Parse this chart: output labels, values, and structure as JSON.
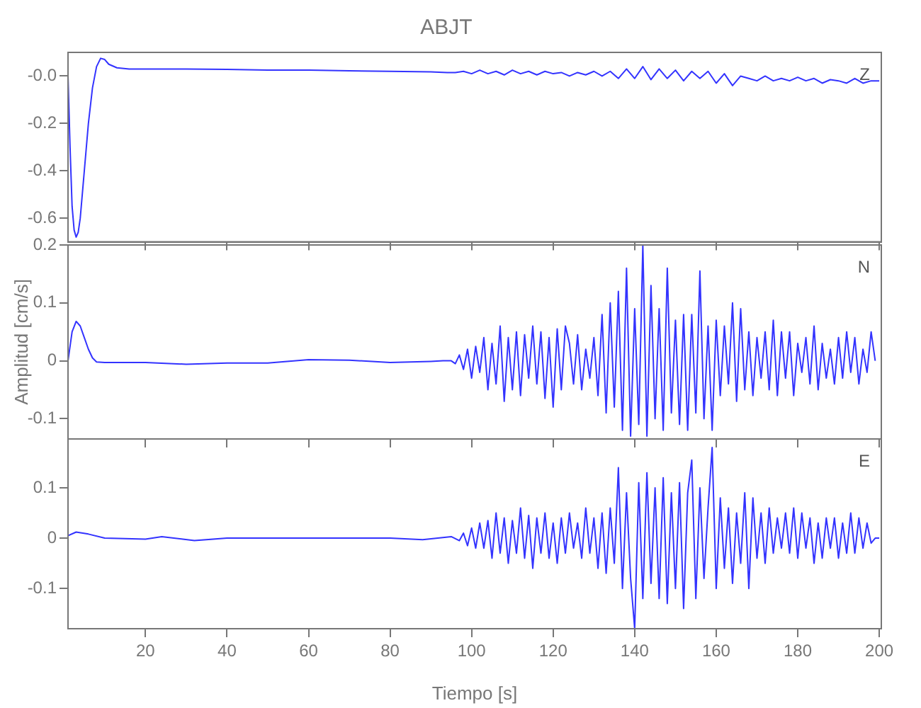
{
  "chart_data": [
    {
      "type": "line",
      "title": "ABJT",
      "annotations": [
        "Z"
      ],
      "xlim": [
        1,
        200.5
      ],
      "xticks": [
        20,
        40,
        60,
        80,
        100,
        120,
        140,
        160,
        180,
        200
      ],
      "ylim": [
        -0.7,
        0.1
      ],
      "yticks": [
        -0.6,
        -0.4,
        -0.2,
        {
          "value": 0,
          "label": "-0.0"
        }
      ],
      "tick_labels": "y",
      "grid": false,
      "legend": false,
      "series": [
        {
          "color": "#3333ff",
          "x": [
            1,
            1.5,
            2,
            2.5,
            3,
            3.5,
            4,
            5,
            6,
            7,
            8,
            9,
            10,
            11,
            13,
            16,
            20,
            30,
            40,
            50,
            60,
            70,
            80,
            90,
            94,
            96,
            98,
            100,
            102,
            104,
            106,
            108,
            110,
            112,
            114,
            116,
            118,
            120,
            122,
            124,
            126,
            128,
            130,
            132,
            134,
            136,
            138,
            140,
            142,
            144,
            146,
            148,
            150,
            152,
            154,
            156,
            158,
            160,
            162,
            164,
            166,
            168,
            170,
            172,
            174,
            176,
            178,
            180,
            182,
            184,
            186,
            188,
            190,
            192,
            194,
            196,
            198,
            200
          ],
          "values": [
            0,
            -0.3,
            -0.55,
            -0.65,
            -0.68,
            -0.66,
            -0.6,
            -0.4,
            -0.2,
            -0.05,
            0.04,
            0.075,
            0.07,
            0.05,
            0.035,
            0.03,
            0.03,
            0.03,
            0.028,
            0.025,
            0.025,
            0.022,
            0.02,
            0.018,
            0.015,
            0.015,
            0.02,
            0.01,
            0.025,
            0.01,
            0.02,
            0.005,
            0.025,
            0.01,
            0.02,
            0.005,
            0.02,
            0.01,
            0.015,
            0,
            0.015,
            0.005,
            0.02,
            0,
            0.02,
            -0.01,
            0.03,
            -0.01,
            0.04,
            -0.015,
            0.03,
            -0.01,
            0.025,
            -0.02,
            0.02,
            -0.01,
            0.02,
            -0.03,
            0.01,
            -0.04,
            0,
            -0.01,
            -0.02,
            0,
            -0.02,
            -0.01,
            -0.02,
            -0.005,
            -0.02,
            -0.01,
            -0.03,
            -0.015,
            -0.02,
            -0.03,
            -0.01,
            -0.03,
            -0.02,
            -0.02
          ]
        }
      ]
    },
    {
      "type": "line",
      "ylabel": "Amplitud [cm/s]",
      "annotations": [
        "N"
      ],
      "xlim": [
        1,
        200.5
      ],
      "xticks": [
        20,
        40,
        60,
        80,
        100,
        120,
        140,
        160,
        180,
        200
      ],
      "ylim": [
        -0.135,
        0.2
      ],
      "yticks": [
        -0.1,
        0,
        0.1,
        0.2
      ],
      "tick_labels": "y",
      "grid": false,
      "legend": false,
      "series": [
        {
          "color": "#3333ff",
          "x": [
            1,
            2,
            3,
            4,
            5,
            6,
            7,
            8,
            10,
            20,
            30,
            40,
            50,
            60,
            70,
            80,
            90,
            93,
            95,
            96,
            97,
            98,
            99,
            100,
            101,
            102,
            103,
            104,
            105,
            106,
            107,
            108,
            109,
            110,
            111,
            112,
            113,
            114,
            115,
            116,
            117,
            118,
            119,
            120,
            121,
            122,
            123,
            124,
            125,
            126,
            127,
            128,
            129,
            130,
            131,
            132,
            133,
            134,
            135,
            136,
            137,
            138,
            139,
            140,
            141,
            142,
            143,
            144,
            145,
            146,
            147,
            148,
            149,
            150,
            151,
            152,
            153,
            154,
            155,
            156,
            157,
            158,
            159,
            160,
            161,
            162,
            163,
            164,
            165,
            166,
            167,
            168,
            169,
            170,
            171,
            172,
            173,
            174,
            175,
            176,
            177,
            178,
            179,
            180,
            181,
            182,
            183,
            184,
            185,
            186,
            187,
            188,
            189,
            190,
            191,
            192,
            193,
            194,
            195,
            196,
            197,
            198,
            199
          ],
          "values": [
            0,
            0.05,
            0.068,
            0.06,
            0.04,
            0.02,
            0.005,
            -0.002,
            -0.003,
            -0.003,
            -0.006,
            -0.004,
            -0.004,
            0.002,
            0.001,
            -0.003,
            -0.001,
            0,
            0,
            -0.005,
            0.01,
            -0.015,
            0.02,
            -0.03,
            0.025,
            -0.02,
            0.04,
            -0.05,
            0.03,
            -0.04,
            0.06,
            -0.07,
            0.04,
            -0.05,
            0.05,
            -0.06,
            0.045,
            -0.03,
            0.06,
            -0.04,
            0.05,
            -0.065,
            0.04,
            -0.08,
            0.055,
            -0.05,
            0.06,
            0.03,
            -0.04,
            0.045,
            -0.05,
            0.02,
            -0.03,
            0.04,
            -0.06,
            0.08,
            -0.09,
            0.1,
            -0.08,
            0.12,
            -0.12,
            0.16,
            -0.13,
            0.09,
            -0.11,
            0.2,
            -0.13,
            0.13,
            -0.1,
            0.09,
            -0.12,
            0.16,
            -0.09,
            0.07,
            -0.11,
            0.08,
            -0.12,
            0.08,
            -0.09,
            0.155,
            -0.1,
            0.06,
            -0.12,
            0.07,
            -0.06,
            0.06,
            -0.04,
            0.1,
            -0.07,
            0.09,
            -0.05,
            0.05,
            -0.06,
            0.04,
            -0.03,
            0.05,
            -0.05,
            0.07,
            -0.06,
            0.05,
            -0.03,
            0.05,
            -0.06,
            0.03,
            -0.02,
            0.04,
            -0.04,
            0.06,
            -0.05,
            0.03,
            -0.03,
            0.02,
            -0.04,
            0.04,
            -0.03,
            0.05,
            -0.02,
            0.04,
            -0.04,
            0.02,
            -0.02,
            0.05,
            0
          ]
        }
      ]
    },
    {
      "type": "line",
      "xlabel": "Tiempo [s]",
      "annotations": [
        "E"
      ],
      "xlim": [
        1,
        200.5
      ],
      "xticks": [
        20,
        40,
        60,
        80,
        100,
        120,
        140,
        160,
        180,
        200
      ],
      "ylim": [
        -0.18,
        0.197
      ],
      "yticks": [
        -0.1,
        0,
        0.1
      ],
      "grid": false,
      "legend": false,
      "series": [
        {
          "color": "#3333ff",
          "x": [
            1,
            3,
            6,
            10,
            20,
            24,
            32,
            40,
            60,
            80,
            88,
            95,
            97,
            98,
            99,
            100,
            101,
            102,
            103,
            104,
            105,
            106,
            107,
            108,
            109,
            110,
            111,
            112,
            113,
            114,
            115,
            116,
            117,
            118,
            119,
            120,
            121,
            122,
            123,
            124,
            125,
            126,
            127,
            128,
            129,
            130,
            131,
            132,
            133,
            134,
            135,
            136,
            137,
            138,
            139,
            140,
            141,
            142,
            143,
            144,
            145,
            146,
            147,
            148,
            149,
            150,
            151,
            152,
            153,
            154,
            155,
            156,
            157,
            158,
            159,
            160,
            161,
            162,
            163,
            164,
            165,
            166,
            167,
            168,
            169,
            170,
            171,
            172,
            173,
            174,
            175,
            176,
            177,
            178,
            179,
            180,
            181,
            182,
            183,
            184,
            185,
            186,
            187,
            188,
            189,
            190,
            191,
            192,
            193,
            194,
            195,
            196,
            197,
            198,
            199,
            200
          ],
          "values": [
            0.005,
            0.012,
            0.008,
            0,
            -0.002,
            0.003,
            -0.005,
            0,
            0,
            0,
            -0.003,
            0.003,
            -0.005,
            0.01,
            -0.015,
            0.02,
            -0.02,
            0.03,
            -0.02,
            0.035,
            -0.04,
            0.05,
            -0.03,
            0.04,
            -0.05,
            0.035,
            -0.03,
            0.06,
            -0.04,
            0.045,
            -0.06,
            0.04,
            -0.03,
            0.05,
            -0.04,
            0.03,
            -0.05,
            0.04,
            -0.03,
            0.05,
            -0.02,
            0.03,
            -0.04,
            0.06,
            -0.03,
            0.04,
            -0.06,
            0.05,
            -0.07,
            0.06,
            -0.05,
            0.14,
            -0.1,
            0.09,
            -0.08,
            -0.18,
            0.11,
            -0.12,
            0.13,
            -0.09,
            0.1,
            -0.12,
            0.12,
            -0.13,
            0.09,
            -0.1,
            0.11,
            -0.14,
            0.09,
            0.155,
            -0.12,
            0.1,
            -0.08,
            0.06,
            0.18,
            -0.1,
            0.08,
            -0.06,
            0.06,
            -0.09,
            0.05,
            -0.05,
            0.09,
            -0.1,
            0.08,
            -0.04,
            0.05,
            -0.05,
            0.06,
            -0.03,
            0.04,
            -0.02,
            0.05,
            -0.03,
            0.06,
            -0.04,
            0.05,
            -0.02,
            0.04,
            -0.05,
            0.03,
            -0.04,
            0.04,
            -0.02,
            0.04,
            -0.04,
            0.03,
            -0.03,
            0.05,
            -0.03,
            0.04,
            -0.02,
            0.03,
            -0.01,
            0,
            0
          ]
        }
      ]
    }
  ]
}
